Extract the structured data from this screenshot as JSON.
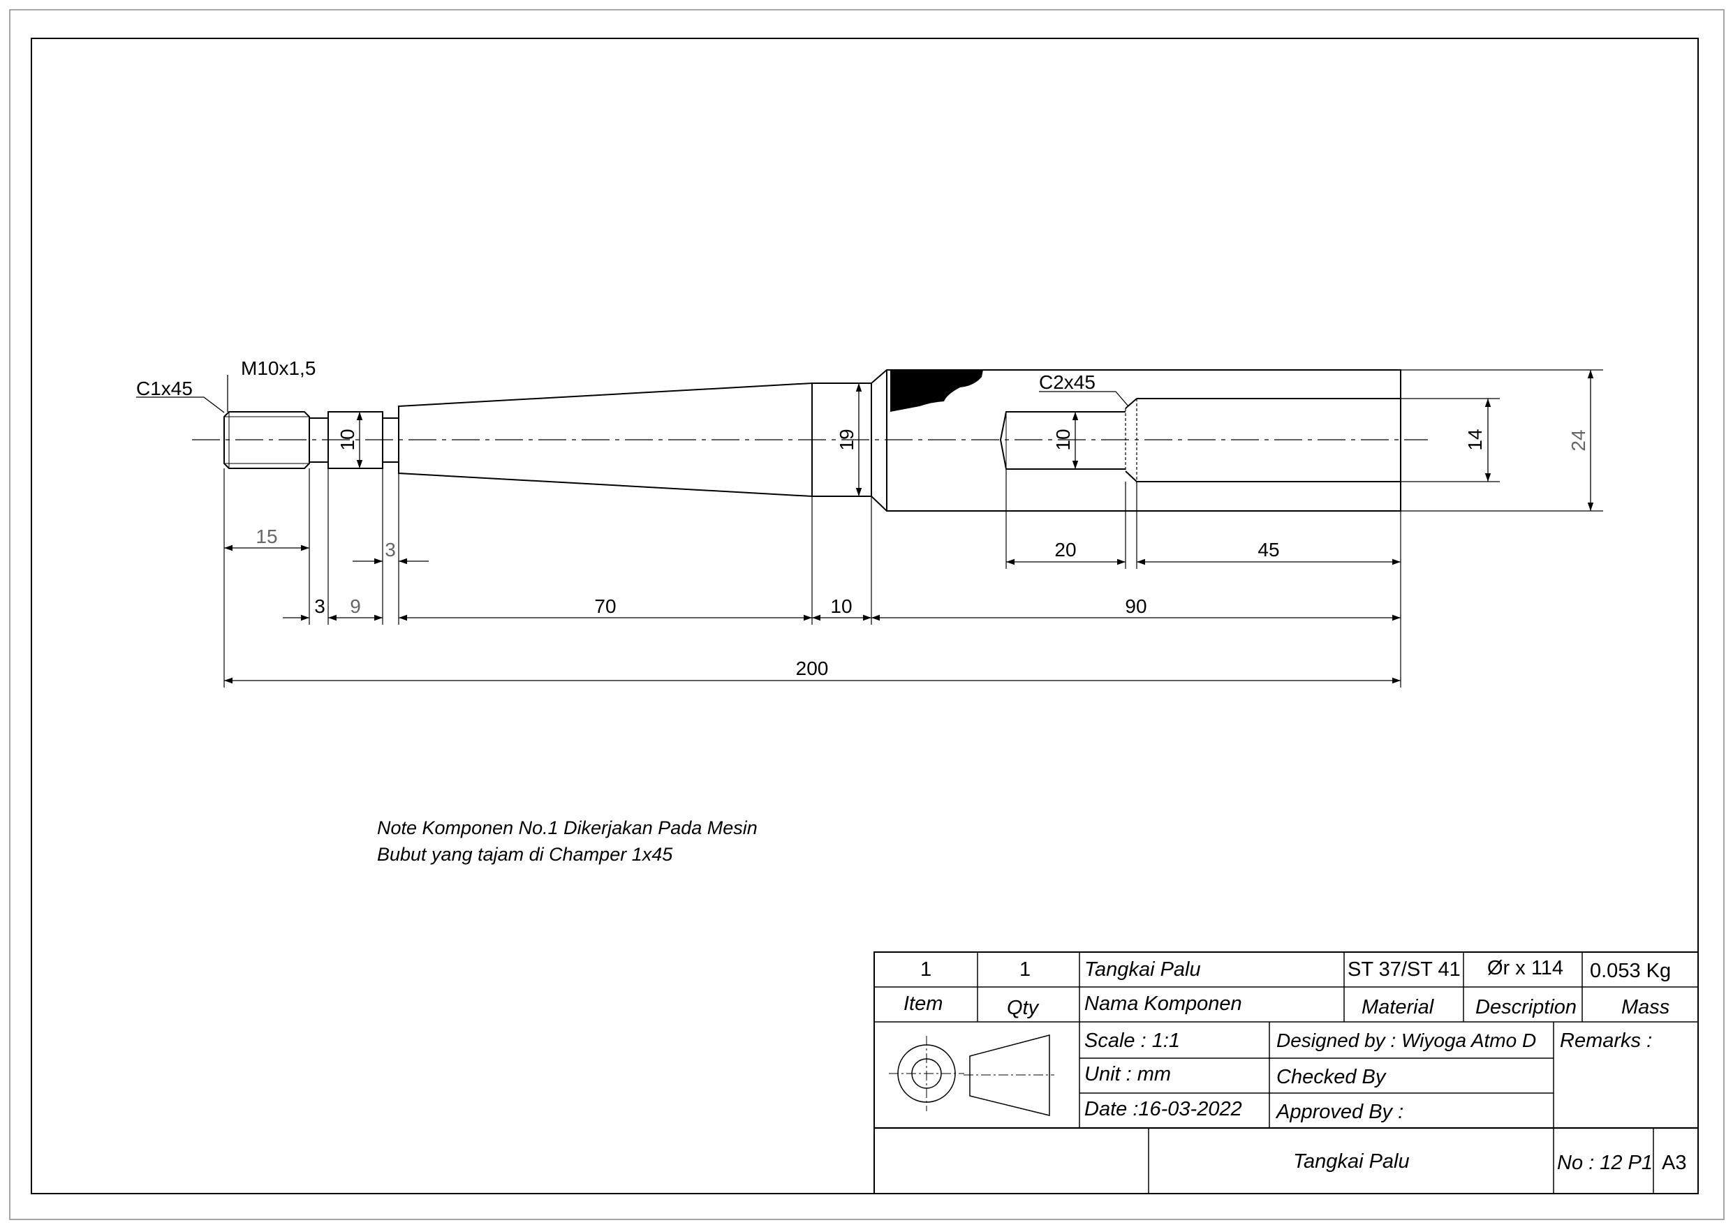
{
  "dimensions": {
    "chamfer_left": "C1x45",
    "thread": "M10x1,5",
    "chamfer_right": "C2x45",
    "dia_10_a": "10",
    "dia_19": "19",
    "dia_10_b": "10",
    "dia_14": "14",
    "dia_24": "24",
    "len_15": "15",
    "len_3_a": "3",
    "len_3_b": "3",
    "len_9": "9",
    "len_70": "70",
    "len_10": "10",
    "len_90": "90",
    "len_20": "20",
    "len_45": "45",
    "len_200": "200"
  },
  "note": {
    "line1": "Note Komponen No.1 Dikerjakan Pada Mesin",
    "line2": "Bubut  yang tajam di Champer 1x45"
  },
  "title_block": {
    "row1": {
      "item": "1",
      "qty": "1",
      "name": "Tangkai Palu",
      "material": "ST 37/ST 41",
      "description": "Ør x 114",
      "mass": "0.053 Kg"
    },
    "headers": {
      "item": "Item",
      "qty": "Qty",
      "name": "Nama Komponen",
      "material": "Material",
      "description": "Description",
      "mass": "Mass"
    },
    "scale": "Scale : 1:1",
    "unit": "Unit : mm",
    "date": "Date :16-03-2022",
    "designed_by": "Designed by : Wiyoga Atmo D",
    "checked_by": "Checked By",
    "approved_by": "Approved By :",
    "remarks": "Remarks :",
    "drawing_title": "Tangkai Palu",
    "drawing_no": "No : 12 P1",
    "sheet_size": "A3"
  }
}
